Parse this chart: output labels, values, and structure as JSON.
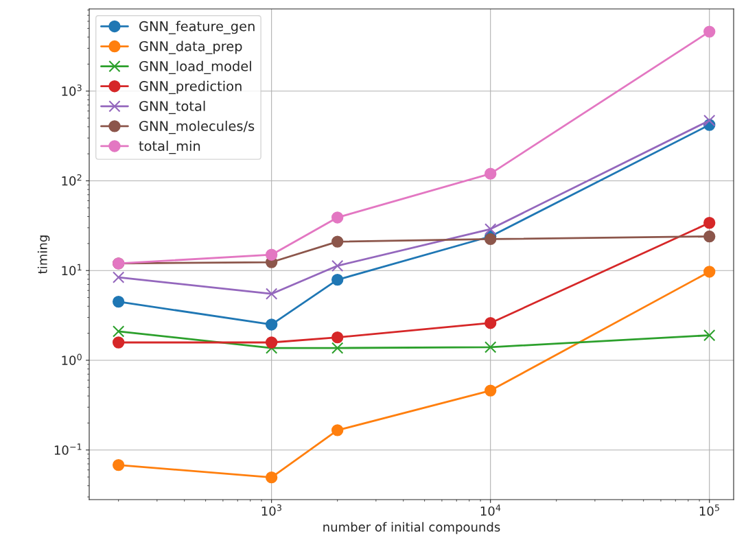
{
  "chart_data": {
    "type": "line",
    "xlabel": "number of initial compounds",
    "ylabel": "timing",
    "x": [
      200,
      1000,
      2000,
      10000,
      100000
    ],
    "series": [
      {
        "name": "GNN_feature_gen",
        "color": "#1f77b4",
        "marker": "circle",
        "values": [
          4.5,
          2.5,
          7.9,
          24,
          420
        ]
      },
      {
        "name": "GNN_data_prep",
        "color": "#ff7f0e",
        "marker": "circle",
        "values": [
          0.068,
          0.0495,
          0.166,
          0.46,
          9.7
        ]
      },
      {
        "name": "GNN_load_model",
        "color": "#2ca02c",
        "marker": "cross",
        "values": [
          2.1,
          1.37,
          1.37,
          1.4,
          1.9
        ]
      },
      {
        "name": "GNN_prediction",
        "color": "#d62728",
        "marker": "circle",
        "values": [
          1.58,
          1.58,
          1.8,
          2.6,
          34
        ]
      },
      {
        "name": "GNN_total",
        "color": "#9467bd",
        "marker": "cross",
        "values": [
          8.4,
          5.5,
          11.3,
          29,
          470
        ]
      },
      {
        "name": "GNN_molecules/s",
        "color": "#8c564b",
        "marker": "circle",
        "values": [
          12,
          12.4,
          21,
          22.4,
          24
        ]
      },
      {
        "name": "total_min",
        "color": "#e377c2",
        "marker": "circle",
        "values": [
          12,
          15,
          39,
          120,
          4600
        ]
      }
    ],
    "log": "xy",
    "xlim": [
      147,
      129000
    ],
    "ylim": [
      0.028,
      8240
    ],
    "xticks": [
      {
        "value": 1000,
        "label": "10$^{3}$"
      },
      {
        "value": 10000,
        "label": "10$^{4}$"
      },
      {
        "value": 100000,
        "label": "10$^{5}$"
      }
    ],
    "yticks": [
      {
        "value": 0.1,
        "label": "10$^{−1}$"
      },
      {
        "value": 1,
        "label": "10$^{0}$"
      },
      {
        "value": 10,
        "label": "10$^{1}$"
      },
      {
        "value": 100,
        "label": "10$^{2}$"
      },
      {
        "value": 1000,
        "label": "10$^{3}$"
      }
    ],
    "grid": true,
    "legend": "top left"
  }
}
